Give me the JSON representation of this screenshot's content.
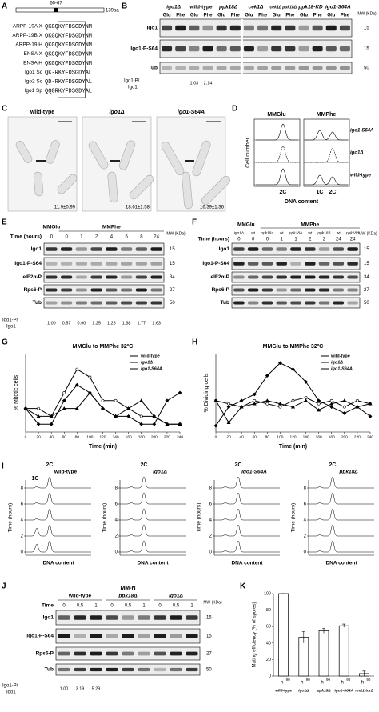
{
  "panel_letters": [
    "A",
    "B",
    "C",
    "D",
    "E",
    "F",
    "G",
    "H",
    "I",
    "J",
    "K"
  ],
  "A": {
    "range": "60-67",
    "length": "139aa",
    "proteins": [
      "ARPP-19A X",
      "ARPP-19B X",
      "ARPP-19 H",
      "ENSA X",
      "ENSA H",
      "Igo1 Sc",
      "Igo2 Sc",
      "Igo1 Sp"
    ],
    "sequences": [
      "QKGQKYFDSGDYNM",
      "QKGQKYFDSGDYNM",
      "QKGQKYFDSGDYNM",
      "QKGQKYFDSGDYNM",
      "QKGQKYFDSGDYNM",
      "QK-RKYFDSGDYAL",
      "QD-RKYFDSGDYAL",
      "QQGRKYFDSGDYAL"
    ]
  },
  "B": {
    "strains": [
      "igo1Δ",
      "wild-type",
      "ppk18Δ",
      "cek1Δ",
      "cek1Δ ppk18Δ",
      "ppk18-KD",
      "igo1-S64A"
    ],
    "media": [
      "Glu",
      "Phe"
    ],
    "rows": [
      "Igo1",
      "Igo1-P-S64",
      "Tub"
    ],
    "mw_title": "MW (KDa)",
    "mw": [
      "15",
      "15",
      "50"
    ],
    "ratio_label": [
      "Igo1-P/",
      "Igo1"
    ],
    "ratios": [
      "1.03",
      "2.14"
    ]
  },
  "C": {
    "strains": [
      "wild-type",
      "igo1Δ",
      "igo1-S64A"
    ],
    "sizes": [
      "11.9±0.99",
      "18.61±1.58",
      "16.39±1.36"
    ]
  },
  "D": {
    "media": [
      "MMGlu",
      "MMPhe"
    ],
    "y_label": "Cell number",
    "strains": [
      "igo1-S64A",
      "igo1Δ",
      "wild-type"
    ],
    "peaks_left": [
      "2C"
    ],
    "peaks_right": [
      "1C",
      "2C"
    ],
    "x_label": "DNA content"
  },
  "E": {
    "media": [
      "MMGlu",
      "MMPhe"
    ],
    "time_label": "Time (hours)",
    "times": [
      "0",
      "0",
      "1",
      "2",
      "4",
      "6",
      "8",
      "24"
    ],
    "rows": [
      "Igo1",
      "Igo1-P-S64",
      "eIF2α-P",
      "Rps6-P",
      "Tub"
    ],
    "mw_title": "MW (KDa)",
    "mw": [
      "15",
      "15",
      "34",
      "27",
      "50"
    ],
    "ratio_label": [
      "Igo1-P/",
      "Igo1"
    ],
    "ratios": [
      "1.00",
      "0.57",
      "0.90",
      "1.25",
      "1.28",
      "1.38",
      "1.77",
      "1.63"
    ]
  },
  "F": {
    "media": [
      "MMGlu",
      "MMPhe"
    ],
    "strains": [
      "igo1Δ",
      "wt",
      "ppk18Δ",
      "wt",
      "ppk18Δ",
      "wt",
      "ppk18Δ",
      "wt",
      "ppk18Δ"
    ],
    "time_label": "Time (hours)",
    "times": [
      "0",
      "0",
      "0",
      "1",
      "1",
      "2",
      "2",
      "24",
      "24"
    ],
    "rows": [
      "Igo1",
      "Igo1-P-S64",
      "eIF2α-P",
      "Rps6-P",
      "Tub"
    ],
    "mw_title": "MW (KDa)",
    "mw": [
      "15",
      "15",
      "34",
      "27",
      "50"
    ]
  },
  "G": {
    "chart": {
      "type": "line",
      "title": "MMGlu to MMPhe 32ºC",
      "x_label": "Time (min)",
      "y_label": "% Mitotic cells",
      "x": [
        0,
        20,
        40,
        60,
        80,
        100,
        120,
        140,
        160,
        180,
        200,
        220,
        240
      ],
      "xlim": [
        0,
        240
      ],
      "xticks": [
        0,
        20,
        40,
        60,
        80,
        100,
        120,
        140,
        160,
        180,
        200,
        220,
        240
      ],
      "ylim": [
        0,
        10
      ],
      "series": [
        {
          "name": "wild-type",
          "color": "#000000",
          "values": [
            3,
            1,
            1,
            4,
            6,
            5,
            3,
            2,
            2,
            1,
            1,
            4,
            5
          ]
        },
        {
          "name": "igo1Δ",
          "color": "#000000",
          "values": [
            3,
            3,
            2,
            5,
            8,
            7,
            4,
            4,
            3,
            2,
            2,
            1,
            1
          ]
        },
        {
          "name": "igo1-S64A",
          "color": "#000000",
          "values": [
            3,
            2,
            2,
            3,
            3,
            5,
            3,
            2,
            3,
            4,
            2,
            1,
            1
          ]
        }
      ]
    }
  },
  "H": {
    "chart": {
      "type": "line",
      "title": "MMGlu to MMPhe 32ºC",
      "x_label": "Time (min)",
      "y_label": "% Dividing cells",
      "x": [
        0,
        20,
        40,
        60,
        80,
        100,
        120,
        140,
        160,
        180,
        200,
        220,
        240
      ],
      "xlim": [
        0,
        240
      ],
      "xticks": [
        0,
        20,
        40,
        60,
        80,
        100,
        120,
        140,
        160,
        180,
        200,
        220,
        240
      ],
      "ylim": [
        0,
        25
      ],
      "series": [
        {
          "name": "wild-type",
          "color": "#000000",
          "values": [
            2,
            8,
            10,
            12,
            18,
            22,
            20,
            16,
            10,
            8,
            6,
            8,
            5
          ]
        },
        {
          "name": "igo1Δ",
          "color": "#000000",
          "values": [
            10,
            9,
            8,
            10,
            9,
            8,
            10,
            11,
            9,
            10,
            8,
            10,
            9
          ]
        },
        {
          "name": "igo1-S64A",
          "color": "#000000",
          "values": [
            10,
            3,
            8,
            9,
            10,
            9,
            8,
            10,
            7,
            9,
            10,
            8,
            9
          ]
        }
      ]
    }
  },
  "I": {
    "y_label": "Time (hours)",
    "yticks": [
      0,
      2,
      4,
      6,
      8
    ],
    "x_label": "DNA content",
    "panels": [
      {
        "strain": "wild-type",
        "peaks": [
          "1C",
          "2C"
        ]
      },
      {
        "strain": "igo1Δ",
        "peaks": [
          "2C"
        ]
      },
      {
        "strain": "igo1-S64A",
        "peaks": [
          "2C"
        ]
      },
      {
        "strain": "ppk18Δ",
        "peaks": [
          "2C"
        ]
      }
    ]
  },
  "J": {
    "medium": "MM-N",
    "strains": [
      "wild-type",
      "ppk18Δ",
      "igo1Δ"
    ],
    "time_label": "Time",
    "times": [
      "0",
      "0.5",
      "1",
      "0",
      "0.5",
      "1",
      "0",
      "0.5",
      "1"
    ],
    "rows": [
      "Igo1",
      "Igo1-P-S64",
      "Rps6-P",
      "Tub"
    ],
    "mw_title": "MW (KDa)",
    "mw": [
      "15",
      "15",
      "27",
      "50"
    ],
    "ratio_label": [
      "Igo1-P/",
      "Igo1"
    ],
    "ratios": [
      "1.00",
      "3.19",
      "5.29"
    ]
  },
  "K": {
    "chart": {
      "type": "bar",
      "y_label": "Mating efficiency (% of spores)",
      "categories": [
        "wild-type",
        "igo1Δ",
        "ppk18Δ",
        "igo1-S64A",
        "nmt1:tor2"
      ],
      "mating_type": "h",
      "mating_sup": "90",
      "values": [
        100,
        47,
        55,
        61,
        3
      ],
      "errors": [
        0,
        7,
        3,
        2,
        3
      ],
      "color": "#ffffff",
      "ylim": [
        0,
        100
      ],
      "yticks": [
        0,
        20,
        40,
        60,
        80,
        100
      ]
    }
  }
}
